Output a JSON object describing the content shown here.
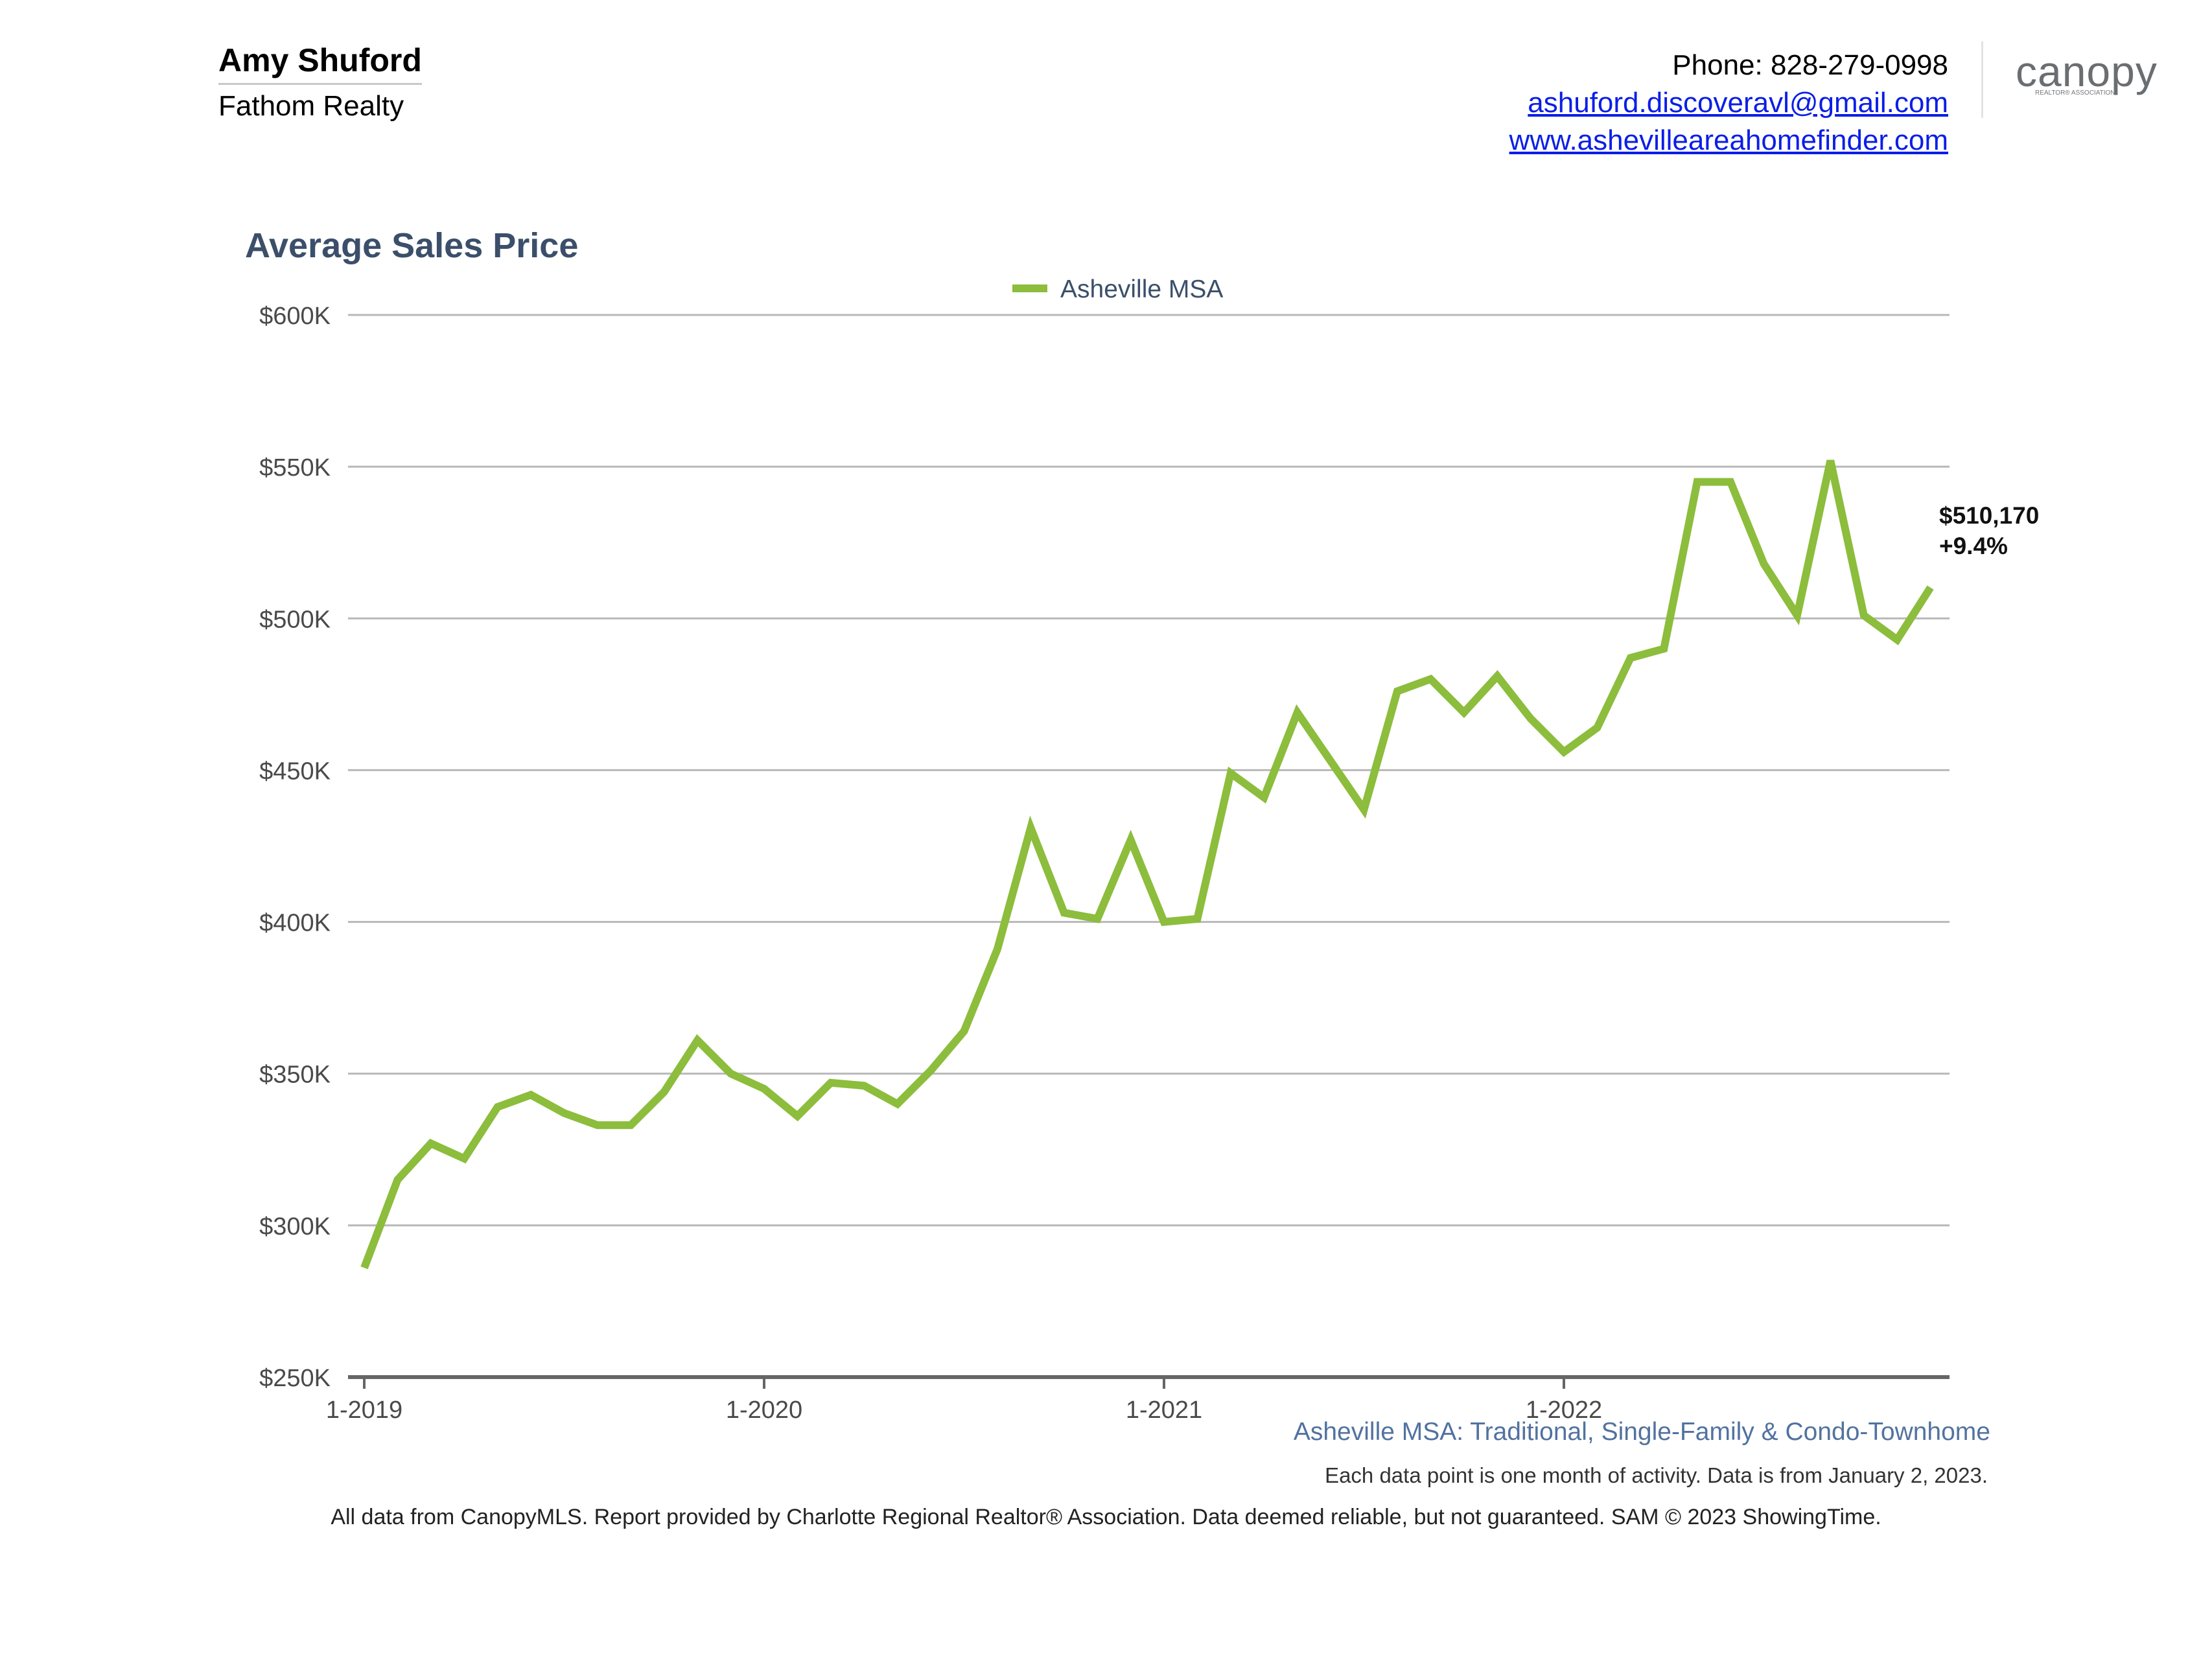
{
  "header": {
    "agent_name": "Amy Shuford",
    "brokerage": "Fathom Realty",
    "phone": "Phone: 828-279-0998",
    "email": "ashuford.discoveravl@gmail.com",
    "website": "www.ashevilleareahomefinder.com",
    "logo_text": "canopy",
    "logo_subtext": "REALTOR® ASSOCIATION"
  },
  "chart_data": {
    "type": "line",
    "title": "Average Sales Price",
    "xlabel": "",
    "ylabel": "",
    "x": [
      "1-2019",
      "2-2019",
      "3-2019",
      "4-2019",
      "5-2019",
      "6-2019",
      "7-2019",
      "8-2019",
      "9-2019",
      "10-2019",
      "11-2019",
      "12-2019",
      "1-2020",
      "2-2020",
      "3-2020",
      "4-2020",
      "5-2020",
      "6-2020",
      "7-2020",
      "8-2020",
      "9-2020",
      "10-2020",
      "11-2020",
      "12-2020",
      "1-2021",
      "2-2021",
      "3-2021",
      "4-2021",
      "5-2021",
      "6-2021",
      "7-2021",
      "8-2021",
      "9-2021",
      "10-2021",
      "11-2021",
      "12-2021",
      "1-2022",
      "2-2022",
      "3-2022",
      "4-2022",
      "5-2022",
      "6-2022",
      "7-2022",
      "8-2022",
      "9-2022",
      "10-2022",
      "11-2022",
      "12-2022"
    ],
    "x_ticks": [
      "1-2019",
      "1-2020",
      "1-2021",
      "1-2022"
    ],
    "series": [
      {
        "name": "Asheville MSA",
        "color": "#8cbd3c",
        "values": [
          286000,
          315000,
          327000,
          322000,
          339000,
          343000,
          337000,
          333000,
          333000,
          344000,
          361000,
          350000,
          345000,
          336000,
          347000,
          346000,
          340000,
          351000,
          364000,
          391000,
          431000,
          403000,
          401000,
          427000,
          400000,
          401000,
          449000,
          441000,
          469000,
          453000,
          437000,
          476000,
          480000,
          469000,
          481000,
          467000,
          456000,
          464000,
          487000,
          490000,
          545000,
          545000,
          518000,
          501000,
          552000,
          501000,
          493000,
          510170
        ]
      }
    ],
    "ylim": [
      250000,
      600000
    ],
    "y_ticks": [
      {
        "value": 250000,
        "label": "$250K"
      },
      {
        "value": 300000,
        "label": "$300K"
      },
      {
        "value": 350000,
        "label": "$350K"
      },
      {
        "value": 400000,
        "label": "$400K"
      },
      {
        "value": 450000,
        "label": "$450K"
      },
      {
        "value": 500000,
        "label": "$500K"
      },
      {
        "value": 550000,
        "label": "$550K"
      },
      {
        "value": 600000,
        "label": "$600K"
      }
    ],
    "grid": true,
    "legend_placement": "top-center",
    "end_annotation": {
      "value_label": "$510,170",
      "change_label": "+9.4%"
    }
  },
  "footer": {
    "series_description": "Asheville MSA: Traditional, Single-Family & Condo-Townhome",
    "data_note": "Each data point is one month of activity. Data is from January 2, 2023.",
    "source_note": "All data from CanopyMLS. Report provided by Charlotte Regional Realtor® Association. Data deemed reliable, but not guaranteed. SAM © 2023 ShowingTime."
  },
  "colors": {
    "title": "#3b4f6a",
    "series_line": "#8cbd3c",
    "gridline": "#b8b8b8",
    "axis": "#666666",
    "link": "#0a1ee6",
    "footer_series": "#5272a0"
  }
}
